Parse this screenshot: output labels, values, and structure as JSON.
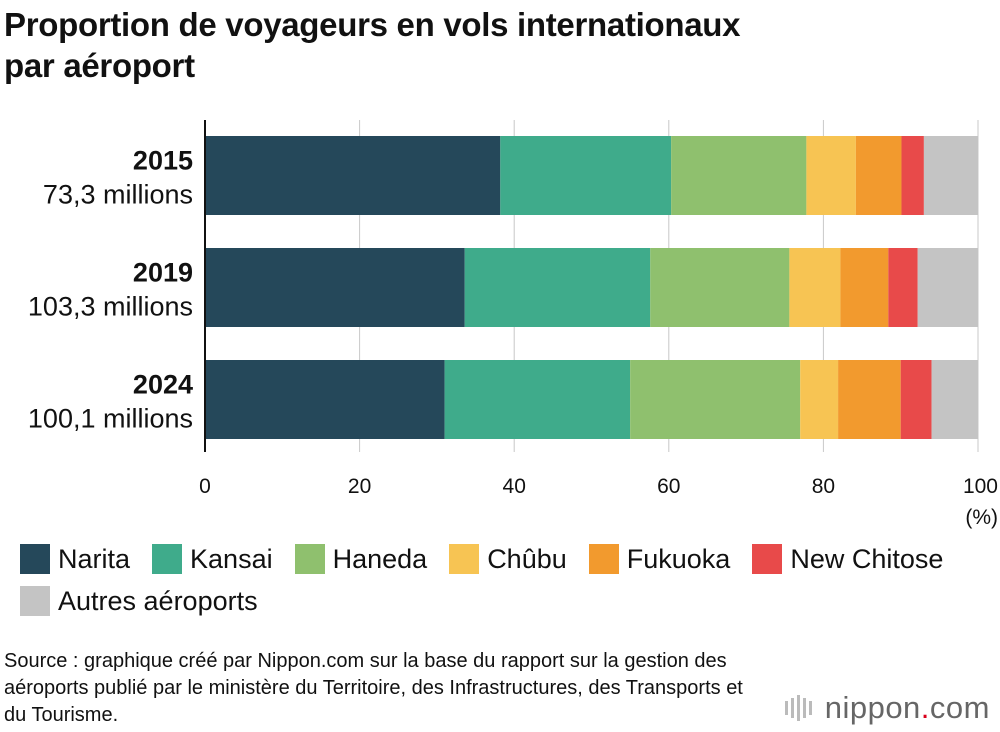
{
  "header": {
    "title_line1": "Proportion de voyageurs en vols internationaux",
    "title_line2": "par aéroport"
  },
  "chart_data": {
    "type": "bar",
    "orientation": "horizontal",
    "stacked": true,
    "categories": [
      {
        "year": "2015",
        "total": "73,3 millions"
      },
      {
        "year": "2019",
        "total": "103,3 millions"
      },
      {
        "year": "2024",
        "total": "100,1 millions"
      }
    ],
    "series": [
      {
        "name": "Narita",
        "color": "#25485a",
        "values": [
          38.2,
          33.6,
          31.0
        ]
      },
      {
        "name": "Kansai",
        "color": "#3fab8b",
        "values": [
          22.1,
          24.0,
          24.0
        ]
      },
      {
        "name": "Haneda",
        "color": "#8fc06e",
        "values": [
          17.5,
          18.0,
          22.0
        ]
      },
      {
        "name": "Chûbu",
        "color": "#f7c453",
        "values": [
          6.4,
          6.6,
          4.9
        ]
      },
      {
        "name": "Fukuoka",
        "color": "#f29a2e",
        "values": [
          5.9,
          6.2,
          8.1
        ]
      },
      {
        "name": "New Chitose",
        "color": "#e84a4a",
        "values": [
          2.9,
          3.8,
          4.0
        ]
      },
      {
        "name": "Autres aéroports",
        "color": "#c4c4c4",
        "values": [
          7.0,
          7.8,
          6.0
        ]
      }
    ],
    "xlim": [
      0,
      100
    ],
    "xticks": [
      "0",
      "20",
      "40",
      "60",
      "80",
      "100"
    ],
    "xunit": "(%)",
    "grid": true,
    "legend_position": "bottom"
  },
  "source": {
    "text": "Source : graphique créé par Nippon.com sur la base du rapport sur la gestion des aéroports publié par le ministère du Territoire, des Infrastructures, des Transports et du Tourisme."
  },
  "logo": {
    "name": "nippon",
    "dot": ".",
    "suffix": "com"
  }
}
